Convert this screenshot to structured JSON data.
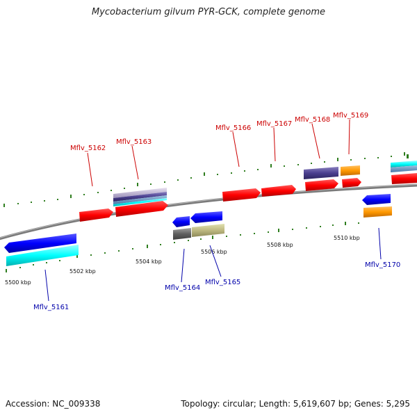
{
  "title": "Mycobacterium gilvum PYR-GCK, complete genome",
  "footer": {
    "accession": "Accession: NC_009338",
    "summary": "Topology: circular; Length: 5,619,607 bp; Genes: 5,295"
  },
  "colors": {
    "forward_label": "#cc0000",
    "reverse_label": "#0000aa",
    "tick": "#2e7d1e",
    "backbone": "#808080"
  },
  "ticks": [
    {
      "label": "5500 kbp"
    },
    {
      "label": "5502 kbp"
    },
    {
      "label": "5504 kbp"
    },
    {
      "label": "5506 kbp"
    },
    {
      "label": "5508 kbp"
    },
    {
      "label": "5510 kbp"
    }
  ],
  "genes_forward": [
    {
      "name": "Mflv_5162"
    },
    {
      "name": "Mflv_5163"
    },
    {
      "name": "Mflv_5166"
    },
    {
      "name": "Mflv_5167"
    },
    {
      "name": "Mflv_5168"
    },
    {
      "name": "Mflv_5169"
    }
  ],
  "genes_reverse": [
    {
      "name": "Mflv_5161"
    },
    {
      "name": "Mflv_5164"
    },
    {
      "name": "Mflv_5165"
    },
    {
      "name": "Mflv_5170"
    }
  ]
}
